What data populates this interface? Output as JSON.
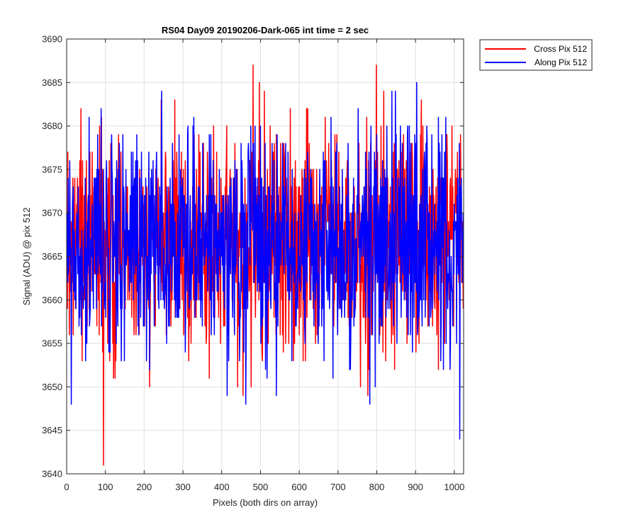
{
  "chart_data": {
    "type": "line",
    "title": "RS04 Day09 20190206-Dark-065 int time = 2 sec",
    "xlabel": "Pixels (both dirs on array)",
    "ylabel": "Signal (ADU) @ pix 512",
    "xlim": [
      0,
      1024
    ],
    "ylim": [
      3640,
      3690
    ],
    "xticks": [
      0,
      100,
      200,
      300,
      400,
      500,
      600,
      700,
      800,
      900,
      1000
    ],
    "yticks": [
      3640,
      3645,
      3650,
      3655,
      3660,
      3665,
      3670,
      3675,
      3680,
      3685,
      3690
    ],
    "grid": true,
    "legend_position": "outside top-right",
    "series": [
      {
        "name": "Cross Pix 512",
        "color": "#ff0000",
        "n_points": 1024,
        "mean": 3666.5,
        "std": 6.5,
        "min": 3640,
        "max": 3687
      },
      {
        "name": "Along Pix 512",
        "color": "#0000ff",
        "n_points": 1024,
        "mean": 3666.5,
        "std": 6.3,
        "min": 3641,
        "max": 3688
      }
    ]
  }
}
